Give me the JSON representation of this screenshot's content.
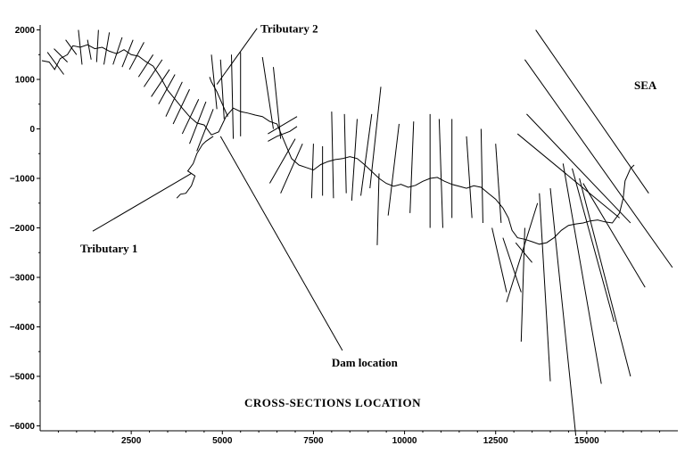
{
  "chart_data": {
    "type": "line",
    "title": "CROSS-SECTIONS LOCATION",
    "xlim": [
      0,
      17500
    ],
    "ylim": [
      -6100,
      2100
    ],
    "x_ticks": [
      2500,
      5000,
      7500,
      10000,
      12500,
      15000
    ],
    "x_tick_labels": [
      "2500",
      "5000",
      "7500",
      "10000",
      "12500",
      "15000"
    ],
    "y_ticks": [
      2000,
      1000,
      0,
      -1000,
      -2000,
      -3000,
      -4000,
      -5000,
      -6000
    ],
    "y_tick_labels": [
      "2000",
      "1000",
      "0",
      "−1000",
      "−2000",
      "−3000",
      "−4000",
      "−5000",
      "−6000"
    ],
    "annotations": [
      {
        "text": "Tributary 2",
        "x": 6050,
        "y": 1950,
        "point": [
          4850,
          900
        ]
      },
      {
        "text": "SEA",
        "x": 16300,
        "y": 800
      },
      {
        "text": "Tributary 1",
        "x": 1100,
        "y": -2500,
        "point": [
          4150,
          -900
        ]
      },
      {
        "text": "Dam location",
        "x": 8000,
        "y": -4800,
        "point": [
          4950,
          -150
        ]
      }
    ],
    "river": [
      [
        50,
        1380
      ],
      [
        250,
        1350
      ],
      [
        400,
        1200
      ],
      [
        550,
        1420
      ],
      [
        750,
        1500
      ],
      [
        900,
        1680
      ],
      [
        1100,
        1650
      ],
      [
        1300,
        1700
      ],
      [
        1500,
        1620
      ],
      [
        1700,
        1650
      ],
      [
        1900,
        1570
      ],
      [
        2100,
        1520
      ],
      [
        2300,
        1600
      ],
      [
        2500,
        1500
      ],
      [
        2700,
        1470
      ],
      [
        2900,
        1360
      ],
      [
        3100,
        1270
      ],
      [
        3300,
        1050
      ],
      [
        3500,
        780
      ],
      [
        3700,
        600
      ],
      [
        3900,
        420
      ],
      [
        4100,
        250
      ],
      [
        4300,
        120
      ],
      [
        4500,
        80
      ],
      [
        4700,
        -120
      ],
      [
        4900,
        -60
      ],
      [
        5100,
        250
      ],
      [
        5300,
        420
      ],
      [
        5500,
        350
      ],
      [
        5700,
        320
      ],
      [
        5900,
        280
      ],
      [
        6100,
        250
      ],
      [
        6300,
        150
      ],
      [
        6500,
        100
      ],
      [
        6700,
        -250
      ],
      [
        6900,
        -600
      ],
      [
        7100,
        -730
      ],
      [
        7300,
        -780
      ],
      [
        7500,
        -830
      ],
      [
        7700,
        -720
      ],
      [
        7900,
        -660
      ],
      [
        8100,
        -620
      ],
      [
        8300,
        -600
      ],
      [
        8500,
        -560
      ],
      [
        8700,
        -600
      ],
      [
        8900,
        -720
      ],
      [
        9100,
        -860
      ],
      [
        9300,
        -1000
      ],
      [
        9500,
        -1100
      ],
      [
        9700,
        -1160
      ],
      [
        9900,
        -1120
      ],
      [
        10100,
        -1180
      ],
      [
        10300,
        -1140
      ],
      [
        10500,
        -1060
      ],
      [
        10700,
        -1000
      ],
      [
        10900,
        -980
      ],
      [
        11100,
        -1060
      ],
      [
        11300,
        -1120
      ],
      [
        11500,
        -1160
      ],
      [
        11700,
        -1200
      ],
      [
        11900,
        -1150
      ],
      [
        12100,
        -1180
      ],
      [
        12300,
        -1300
      ],
      [
        12500,
        -1420
      ],
      [
        12700,
        -1600
      ],
      [
        12850,
        -1800
      ],
      [
        12950,
        -2050
      ],
      [
        13100,
        -2200
      ],
      [
        13300,
        -2230
      ],
      [
        13500,
        -2280
      ],
      [
        13700,
        -2330
      ],
      [
        13900,
        -2300
      ],
      [
        14100,
        -2200
      ],
      [
        14300,
        -2050
      ],
      [
        14500,
        -1950
      ],
      [
        14700,
        -1920
      ],
      [
        14900,
        -1900
      ],
      [
        15100,
        -1860
      ],
      [
        15300,
        -1840
      ],
      [
        15500,
        -1880
      ],
      [
        15700,
        -1900
      ],
      [
        15900,
        -1700
      ],
      [
        16000,
        -1400
      ],
      [
        16050,
        -1050
      ],
      [
        16200,
        -800
      ],
      [
        16300,
        -730
      ]
    ],
    "tributary_1": [
      [
        4750,
        -150
      ],
      [
        4550,
        -250
      ],
      [
        4450,
        -320
      ],
      [
        4300,
        -500
      ],
      [
        4200,
        -700
      ],
      [
        4050,
        -850
      ],
      [
        4250,
        -950
      ],
      [
        4150,
        -1150
      ],
      [
        4000,
        -1300
      ],
      [
        3850,
        -1320
      ],
      [
        3750,
        -1400
      ]
    ],
    "tributary_2": [
      [
        5150,
        250
      ],
      [
        5000,
        500
      ],
      [
        4850,
        750
      ],
      [
        4700,
        950
      ],
      [
        4650,
        1050
      ]
    ],
    "tributary_3": [
      [
        6250,
        -250
      ],
      [
        6500,
        -150
      ],
      [
        6850,
        -50
      ],
      [
        7050,
        50
      ]
    ],
    "cross_sections": [
      [
        [
          200,
          1550
        ],
        [
          650,
          1100
        ]
      ],
      [
        [
          380,
          1620
        ],
        [
          750,
          1350
        ]
      ],
      [
        [
          700,
          1800
        ],
        [
          1000,
          1500
        ]
      ],
      [
        [
          1050,
          2000
        ],
        [
          1150,
          1300
        ]
      ],
      [
        [
          1300,
          1800
        ],
        [
          1400,
          1400
        ]
      ],
      [
        [
          1600,
          2000
        ],
        [
          1550,
          1350
        ]
      ],
      [
        [
          1900,
          1950
        ],
        [
          1750,
          1300
        ]
      ],
      [
        [
          2250,
          1850
        ],
        [
          2000,
          1300
        ]
      ],
      [
        [
          2550,
          1800
        ],
        [
          2250,
          1250
        ]
      ],
      [
        [
          2850,
          1750
        ],
        [
          2450,
          1200
        ]
      ],
      [
        [
          3100,
          1500
        ],
        [
          2700,
          1050
        ]
      ],
      [
        [
          3350,
          1400
        ],
        [
          2850,
          850
        ]
      ],
      [
        [
          3550,
          1200
        ],
        [
          3050,
          650
        ]
      ],
      [
        [
          3700,
          1100
        ],
        [
          3250,
          500
        ]
      ],
      [
        [
          3900,
          950
        ],
        [
          3450,
          250
        ]
      ],
      [
        [
          4100,
          800
        ],
        [
          3650,
          100
        ]
      ],
      [
        [
          4350,
          600
        ],
        [
          3900,
          -100
        ]
      ],
      [
        [
          4550,
          550
        ],
        [
          4100,
          -300
        ]
      ],
      [
        [
          4750,
          400
        ],
        [
          4300,
          -450
        ]
      ],
      [
        [
          4700,
          1500
        ],
        [
          4850,
          400
        ]
      ],
      [
        [
          4950,
          1400
        ],
        [
          5050,
          200
        ]
      ],
      [
        [
          5250,
          1500
        ],
        [
          5300,
          -200
        ]
      ],
      [
        [
          5500,
          1550
        ],
        [
          5500,
          -150
        ]
      ],
      [
        [
          6100,
          1450
        ],
        [
          6400,
          0
        ]
      ],
      [
        [
          6400,
          1250
        ],
        [
          6600,
          -200
        ]
      ],
      [
        [
          7050,
          250
        ],
        [
          6250,
          -100
        ]
      ],
      [
        [
          7000,
          -200
        ],
        [
          6300,
          -1100
        ]
      ],
      [
        [
          7200,
          -300
        ],
        [
          6600,
          -1300
        ]
      ],
      [
        [
          7500,
          -300
        ],
        [
          7450,
          -1400
        ]
      ],
      [
        [
          7750,
          -350
        ],
        [
          7750,
          -1350
        ]
      ],
      [
        [
          8000,
          350
        ],
        [
          8050,
          -1400
        ]
      ],
      [
        [
          8350,
          300
        ],
        [
          8400,
          -1300
        ]
      ],
      [
        [
          8700,
          200
        ],
        [
          8550,
          -1450
        ]
      ],
      [
        [
          9100,
          300
        ],
        [
          8800,
          -1350
        ]
      ],
      [
        [
          9350,
          850
        ],
        [
          9050,
          -1200
        ]
      ],
      [
        [
          9300,
          -900
        ],
        [
          9250,
          -2350
        ]
      ],
      [
        [
          9850,
          100
        ],
        [
          9550,
          -1750
        ]
      ],
      [
        [
          10250,
          150
        ],
        [
          10150,
          -1700
        ]
      ],
      [
        [
          10700,
          300
        ],
        [
          10700,
          -2000
        ]
      ],
      [
        [
          10950,
          200
        ],
        [
          11050,
          -2000
        ]
      ],
      [
        [
          11300,
          200
        ],
        [
          11300,
          -1800
        ]
      ],
      [
        [
          11700,
          -150
        ],
        [
          11850,
          -1800
        ]
      ],
      [
        [
          12100,
          0
        ],
        [
          12150,
          -1900
        ]
      ],
      [
        [
          12500,
          -300
        ],
        [
          12650,
          -1900
        ]
      ],
      [
        [
          12400,
          -2000
        ],
        [
          12800,
          -3300
        ]
      ],
      [
        [
          12700,
          -2200
        ],
        [
          13200,
          -3300
        ]
      ],
      [
        [
          13050,
          -2300
        ],
        [
          13500,
          -2700
        ]
      ],
      [
        [
          13650,
          -1500
        ],
        [
          12800,
          -3500
        ]
      ],
      [
        [
          13700,
          -1300
        ],
        [
          14000,
          -5100
        ]
      ],
      [
        [
          14000,
          -1200
        ],
        [
          14700,
          -6200
        ]
      ],
      [
        [
          14350,
          -700
        ],
        [
          15400,
          -5150
        ]
      ],
      [
        [
          14600,
          -800
        ],
        [
          15750,
          -3900
        ]
      ],
      [
        [
          14800,
          -1000
        ],
        [
          16200,
          -5000
        ]
      ],
      [
        [
          14900,
          -1100
        ],
        [
          16600,
          -3200
        ]
      ],
      [
        [
          13300,
          -2000
        ],
        [
          13200,
          -4300
        ]
      ],
      [
        [
          13600,
          2000
        ],
        [
          16700,
          -1300
        ]
      ],
      [
        [
          13300,
          1400
        ],
        [
          17350,
          -2800
        ]
      ],
      [
        [
          13350,
          300
        ],
        [
          16200,
          -1900
        ]
      ],
      [
        [
          13100,
          -100
        ],
        [
          15900,
          -1800
        ]
      ]
    ]
  }
}
